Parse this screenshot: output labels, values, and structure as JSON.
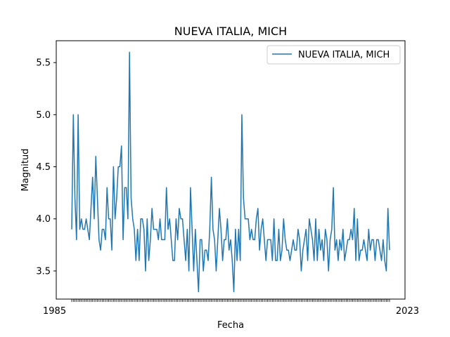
{
  "chart_data": {
    "type": "line",
    "title": "NUEVA ITALIA, MICH",
    "xlabel": "Fecha",
    "ylabel": "Magnitud",
    "ylim": [
      3.23,
      5.71
    ],
    "yticks": [
      3.5,
      4.0,
      4.5,
      5.0,
      5.5
    ],
    "ytick_labels": [
      "3.5",
      "4.0",
      "4.5",
      "5.0",
      "5.5"
    ],
    "xtick_left_text": "1985",
    "xtick_right_text": "2023",
    "grid": false,
    "legend_position": "top-right",
    "series": [
      {
        "name": "NUEVA ITALIA, MICH",
        "color": "#1f77b4",
        "values": [
          3.9,
          5.0,
          4.2,
          3.8,
          5.0,
          3.9,
          4.0,
          3.9,
          3.9,
          4.0,
          3.9,
          3.8,
          4.1,
          4.4,
          4.0,
          4.6,
          4.2,
          3.8,
          3.7,
          3.9,
          3.9,
          3.8,
          4.3,
          4.0,
          4.0,
          3.7,
          4.5,
          4.0,
          4.2,
          4.5,
          4.5,
          4.7,
          3.8,
          4.3,
          4.3,
          4.0,
          5.6,
          4.2,
          4.0,
          3.9,
          3.6,
          3.9,
          3.6,
          4.0,
          4.0,
          3.9,
          3.5,
          4.0,
          3.6,
          3.8,
          4.1,
          3.9,
          3.9,
          3.9,
          3.8,
          4.0,
          3.8,
          3.8,
          3.8,
          4.3,
          3.9,
          4.0,
          3.8,
          3.6,
          3.6,
          4.0,
          3.8,
          4.1,
          4.0,
          4.0,
          3.8,
          3.6,
          3.9,
          3.5,
          4.3,
          3.9,
          3.5,
          3.9,
          3.6,
          3.3,
          3.8,
          3.8,
          3.5,
          3.7,
          3.7,
          3.6,
          3.9,
          4.4,
          3.9,
          3.8,
          3.5,
          3.8,
          4.1,
          3.9,
          3.6,
          3.8,
          3.8,
          4.0,
          3.7,
          3.8,
          3.6,
          3.3,
          3.9,
          3.6,
          3.9,
          3.6,
          5.0,
          4.2,
          4.0,
          4.0,
          4.0,
          3.8,
          3.9,
          3.8,
          3.8,
          4.0,
          4.1,
          3.7,
          3.9,
          4.0,
          3.8,
          3.6,
          3.8,
          3.8,
          3.8,
          3.6,
          4.0,
          3.6,
          3.6,
          3.9,
          3.6,
          3.7,
          4.0,
          3.8,
          3.7,
          3.7,
          3.6,
          3.7,
          3.8,
          3.7,
          3.7,
          3.9,
          3.8,
          3.5,
          3.7,
          3.8,
          3.9,
          3.6,
          4.0,
          3.9,
          3.8,
          3.6,
          4.0,
          3.6,
          3.9,
          3.7,
          3.8,
          3.6,
          3.9,
          3.8,
          3.5,
          3.8,
          3.9,
          4.3,
          3.7,
          3.8,
          3.6,
          3.8,
          3.7,
          3.9,
          3.6,
          3.7,
          3.8,
          3.8,
          3.9,
          3.8,
          4.1,
          3.6,
          4.0,
          3.6,
          3.7,
          3.7,
          3.8,
          3.7,
          3.6,
          3.9,
          3.7,
          3.8,
          3.8,
          3.6,
          3.8,
          3.8,
          3.7,
          3.6,
          3.8,
          3.6,
          3.5,
          4.1,
          3.7
        ]
      }
    ]
  }
}
